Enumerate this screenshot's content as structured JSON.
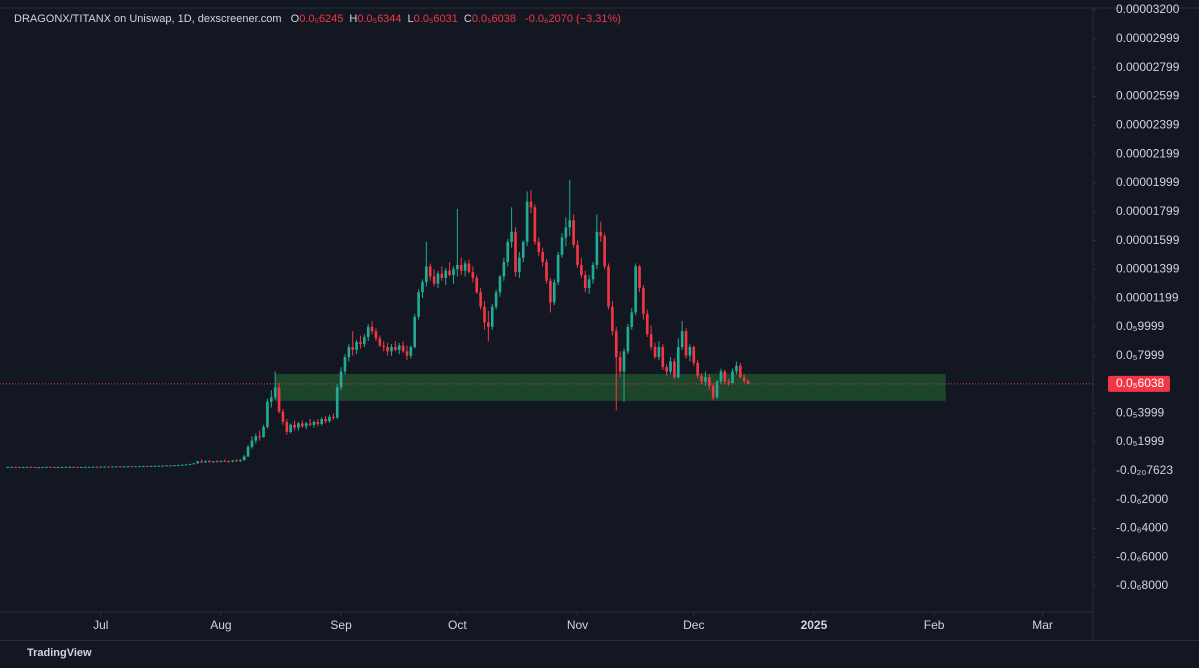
{
  "chart_data": {
    "type": "candlestick",
    "legend_text": {
      "symbol": "DRAGONX/TITANX on Uniswap, 1D, dexscreener.com",
      "ohlc": [
        {
          "key": "O",
          "value": "0.0₅6245"
        },
        {
          "key": "H",
          "value": "0.0₅6344"
        },
        {
          "key": "L",
          "value": "0.0₅6031"
        },
        {
          "key": "C",
          "value": "0.0₅6038"
        }
      ],
      "change": "-0.0₆2070 (−3.31%)"
    },
    "up_color": "#22ab94",
    "down_color": "#f23645",
    "xlim": [
      -2,
      280
    ],
    "ylim": [
      -9.8e-06,
      3.214e-05
    ],
    "yticks": [
      {
        "value": 3.2e-05,
        "label": "0.00003200"
      },
      2.999e-05,
      2.799e-05,
      2.599e-05,
      2.399e-05,
      2.199e-05,
      1.999e-05,
      1.799e-05,
      1.599e-05,
      1.399e-05,
      1.199e-05,
      {
        "value": 9.999e-06,
        "label": "0.0₅9999"
      },
      {
        "value": 7.999e-06,
        "label": "0.0₅7999"
      },
      {
        "value": 3.999e-06,
        "label": "0.0₅3999"
      },
      {
        "value": 1.999e-06,
        "label": "0.0₅1999"
      },
      {
        "value": -7.623e-21,
        "label": "-0.0₂₀7623"
      },
      {
        "value": -2e-06,
        "label": "-0.0₆2000"
      },
      {
        "value": -4e-06,
        "label": "-0.0₆4000"
      },
      {
        "value": -6e-06,
        "label": "-0.0₆6000"
      },
      {
        "value": -8e-06,
        "label": "-0.0₆8000"
      }
    ],
    "xticks": [
      {
        "value": 24,
        "label": "Jul"
      },
      {
        "value": 55,
        "label": "Aug"
      },
      {
        "value": 86,
        "label": "Sep"
      },
      {
        "value": 116,
        "label": "Oct"
      },
      {
        "value": 147,
        "label": "Nov"
      },
      {
        "value": 177,
        "label": "Dec"
      },
      {
        "value": 208,
        "label": "2025"
      },
      {
        "value": 239,
        "label": "Feb"
      },
      {
        "value": 267,
        "label": "Mar"
      }
    ],
    "last_price": {
      "value": 6.038e-06,
      "label": "0.0₅6038",
      "color": "#f23645"
    },
    "zone": {
      "x": [
        69,
        242
      ],
      "y": [
        4.86e-06,
        6.73e-06
      ],
      "color": "#1f4d2e"
    },
    "candles": [
      [
        2.6e-07,
        2.8e-07,
        2.5e-07,
        2.7e-07
      ],
      [
        2.7e-07,
        2.9e-07,
        2.6e-07,
        2.8e-07
      ],
      [
        2.8e-07,
        2.9e-07,
        2.6e-07,
        2.7e-07
      ],
      [
        2.7e-07,
        2.8e-07,
        2.5e-07,
        2.6e-07
      ],
      [
        2.6e-07,
        2.8e-07,
        2.5e-07,
        2.7e-07
      ],
      [
        2.7e-07,
        2.9e-07,
        2.6e-07,
        2.8e-07
      ],
      [
        2.8e-07,
        3e-07,
        2.7e-07,
        2.7e-07
      ],
      [
        2.7e-07,
        2.8e-07,
        2.5e-07,
        2.6e-07
      ],
      [
        2.6e-07,
        2.7e-07,
        2.4e-07,
        2.6e-07
      ],
      [
        2.6e-07,
        2.8e-07,
        2.5e-07,
        2.7e-07
      ],
      [
        2.7e-07,
        2.9e-07,
        2.6e-07,
        2.8e-07
      ],
      [
        2.8e-07,
        2.9e-07,
        2.6e-07,
        2.7e-07
      ],
      [
        2.7e-07,
        2.8e-07,
        2.5e-07,
        2.6e-07
      ],
      [
        2.6e-07,
        2.8e-07,
        2.5e-07,
        2.7e-07
      ],
      [
        2.7e-07,
        2.8e-07,
        2.6e-07,
        2.7e-07
      ],
      [
        2.7e-07,
        2.9e-07,
        2.6e-07,
        2.8e-07
      ],
      [
        2.8e-07,
        3e-07,
        2.7e-07,
        2.8e-07
      ],
      [
        2.8e-07,
        2.9e-07,
        2.6e-07,
        2.7e-07
      ],
      [
        2.7e-07,
        2.8e-07,
        2.5e-07,
        2.6e-07
      ],
      [
        2.6e-07,
        2.8e-07,
        2.5e-07,
        2.7e-07
      ],
      [
        2.7e-07,
        2.9e-07,
        2.6e-07,
        2.8e-07
      ],
      [
        2.8e-07,
        2.9e-07,
        2.7e-07,
        2.8e-07
      ],
      [
        2.8e-07,
        3e-07,
        2.7e-07,
        2.9e-07
      ],
      [
        2.9e-07,
        3e-07,
        2.7e-07,
        2.8e-07
      ],
      [
        2.8e-07,
        3e-07,
        2.7e-07,
        2.9e-07
      ],
      [
        2.9e-07,
        3.1e-07,
        2.8e-07,
        3e-07
      ],
      [
        3e-07,
        3.1e-07,
        2.8e-07,
        2.9e-07
      ],
      [
        2.9e-07,
        3.1e-07,
        2.8e-07,
        3e-07
      ],
      [
        3e-07,
        3.2e-07,
        2.9e-07,
        3.1e-07
      ],
      [
        3.1e-07,
        3.2e-07,
        2.9e-07,
        3e-07
      ],
      [
        3e-07,
        3.2e-07,
        2.9e-07,
        3.1e-07
      ],
      [
        3.1e-07,
        3.3e-07,
        3e-07,
        3.2e-07
      ],
      [
        3.2e-07,
        3.3e-07,
        3e-07,
        3.1e-07
      ],
      [
        3.1e-07,
        3.3e-07,
        3e-07,
        3.2e-07
      ],
      [
        3.2e-07,
        3.4e-07,
        3.1e-07,
        3.3e-07
      ],
      [
        3.3e-07,
        3.5e-07,
        3.2e-07,
        3.4e-07
      ],
      [
        3.4e-07,
        3.5e-07,
        3.2e-07,
        3.3e-07
      ],
      [
        3.3e-07,
        3.5e-07,
        3.2e-07,
        3.4e-07
      ],
      [
        3.4e-07,
        3.6e-07,
        3.3e-07,
        3.5e-07
      ],
      [
        3.5e-07,
        3.7e-07,
        3.4e-07,
        3.6e-07
      ],
      [
        3.6e-07,
        3.8e-07,
        3.5e-07,
        3.7e-07
      ],
      [
        3.7e-07,
        3.9e-07,
        3.5e-07,
        3.8e-07
      ],
      [
        3.8e-07,
        4e-07,
        3.6e-07,
        3.7e-07
      ],
      [
        3.7e-07,
        4e-07,
        3.6e-07,
        3.9e-07
      ],
      [
        3.9e-07,
        4.2e-07,
        3.8e-07,
        4.1e-07
      ],
      [
        4.1e-07,
        4.4e-07,
        3.9e-07,
        4.3e-07
      ],
      [
        4.3e-07,
        4.6e-07,
        4.1e-07,
        4.5e-07
      ],
      [
        4.5e-07,
        5e-07,
        4.3e-07,
        4.8e-07
      ],
      [
        4.8e-07,
        5.5e-07,
        4.6e-07,
        5.2e-07
      ],
      [
        5.2e-07,
        7e-07,
        5e-07,
        6.5e-07
      ],
      [
        6.5e-07,
        8e-07,
        5.5e-07,
        6e-07
      ],
      [
        6e-07,
        7.2e-07,
        5.5e-07,
        6.8e-07
      ],
      [
        6.8e-07,
        7.5e-07,
        5.8e-07,
        6.2e-07
      ],
      [
        6.2e-07,
        7e-07,
        5.6e-07,
        6.6e-07
      ],
      [
        6.6e-07,
        7.4e-07,
        6e-07,
        6.3e-07
      ],
      [
        6.3e-07,
        7.2e-07,
        5.8e-07,
        7e-07
      ],
      [
        7e-07,
        7.8e-07,
        6.2e-07,
        6.6e-07
      ],
      [
        6.6e-07,
        7.4e-07,
        6e-07,
        6.4e-07
      ],
      [
        6.4e-07,
        7.5e-07,
        6e-07,
        7.2e-07
      ],
      [
        7.2e-07,
        8.2e-07,
        6.5e-07,
        6.8e-07
      ],
      [
        6.8e-07,
        8e-07,
        6.2e-07,
        7.5e-07
      ],
      [
        7.5e-07,
        1.1e-06,
        7e-07,
        1e-06
      ],
      [
        1e-06,
        1.8e-06,
        9.5e-07,
        1.66e-06
      ],
      [
        1.66e-06,
        2.4e-06,
        1.55e-06,
        2.1e-06
      ],
      [
        2.1e-06,
        2.6e-06,
        1.9e-06,
        2.4e-06
      ],
      [
        2.4e-06,
        2.8e-06,
        2.1e-06,
        2.36e-06
      ],
      [
        2.36e-06,
        3.2e-06,
        2.3e-06,
        3.05e-06
      ],
      [
        3.05e-06,
        5e-06,
        2.95e-06,
        4.8e-06
      ],
      [
        4.8e-06,
        5.6e-06,
        4.4e-06,
        5.1e-06
      ],
      [
        5.1e-06,
        6.9e-06,
        4.9e-06,
        5.8e-06
      ],
      [
        5.8e-06,
        6.1e-06,
        4e-06,
        4.1e-06
      ],
      [
        4.1e-06,
        4.3e-06,
        3.2e-06,
        3.4e-06
      ],
      [
        3.4e-06,
        3.6e-06,
        2.5e-06,
        2.7e-06
      ],
      [
        2.7e-06,
        3.3e-06,
        2.6e-06,
        3.2e-06
      ],
      [
        3.2e-06,
        3.5e-06,
        2.8e-06,
        3e-06
      ],
      [
        3e-06,
        3.4e-06,
        2.8e-06,
        3.3e-06
      ],
      [
        3.3e-06,
        3.5e-06,
        3e-06,
        3.1e-06
      ],
      [
        3.1e-06,
        3.4e-06,
        2.9e-06,
        3.3e-06
      ],
      [
        3.3e-06,
        3.6e-06,
        3.1e-06,
        3.2e-06
      ],
      [
        3.2e-06,
        3.5e-06,
        3e-06,
        3.4e-06
      ],
      [
        3.4e-06,
        3.6e-06,
        3.1e-06,
        3.25e-06
      ],
      [
        3.25e-06,
        3.7e-06,
        3.15e-06,
        3.6e-06
      ],
      [
        3.6e-06,
        3.8e-06,
        3.3e-06,
        3.45e-06
      ],
      [
        3.45e-06,
        3.9e-06,
        3.35e-06,
        3.75e-06
      ],
      [
        3.75e-06,
        4e-06,
        3.55e-06,
        3.7e-06
      ],
      [
        3.7e-06,
        6e-06,
        3.6e-06,
        5.8e-06
      ],
      [
        5.8e-06,
        7.2e-06,
        5.6e-06,
        6.9e-06
      ],
      [
        6.9e-06,
        8.1e-06,
        6.7e-06,
        7.9e-06
      ],
      [
        7.9e-06,
        8.8e-06,
        7.6e-06,
        8.6e-06
      ],
      [
        8.6e-06,
        9.7e-06,
        8e-06,
        8.4e-06
      ],
      [
        8.4e-06,
        9.1e-06,
        8.1e-06,
        8.95e-06
      ],
      [
        8.95e-06,
        9.4e-06,
        8.5e-06,
        8.8e-06
      ],
      [
        8.8e-06,
        9.5e-06,
        8.6e-06,
        9.3e-06
      ],
      [
        9.3e-06,
        1.02e-05,
        9e-06,
        1e-05
      ],
      [
        1e-05,
        1.04e-05,
        9.5e-06,
        9.7e-06
      ],
      [
        9.7e-06,
        9.9e-06,
        9e-06,
        9.2e-06
      ],
      [
        9.2e-06,
        9.4e-06,
        8.6e-06,
        8.7e-06
      ],
      [
        8.7e-06,
        9e-06,
        8.3e-06,
        8.6e-06
      ],
      [
        8.6e-06,
        8.9e-06,
        8e-06,
        8.3e-06
      ],
      [
        8.3e-06,
        8.8e-06,
        8e-06,
        8.6e-06
      ],
      [
        8.6e-06,
        9e-06,
        8.3e-06,
        8.4e-06
      ],
      [
        8.4e-06,
        8.9e-06,
        8.1e-06,
        8.7e-06
      ],
      [
        8.7e-06,
        9e-06,
        8.2e-06,
        8.3e-06
      ],
      [
        8.3e-06,
        8.7e-06,
        7.7e-06,
        8e-06
      ],
      [
        8e-06,
        8.7e-06,
        7.8e-06,
        8.6e-06
      ],
      [
        8.6e-06,
        1.09e-05,
        8.5e-06,
        1.07e-05
      ],
      [
        1.07e-05,
        1.26e-05,
        1.05e-05,
        1.24e-05
      ],
      [
        1.24e-05,
        1.33e-05,
        1.2e-05,
        1.31e-05
      ],
      [
        1.31e-05,
        1.59e-05,
        1.28e-05,
        1.42e-05
      ],
      [
        1.42e-05,
        1.44e-05,
        1.32e-05,
        1.35e-05
      ],
      [
        1.35e-05,
        1.4e-05,
        1.28e-05,
        1.3e-05
      ],
      [
        1.3e-05,
        1.39e-05,
        1.27e-05,
        1.37e-05
      ],
      [
        1.37e-05,
        1.42e-05,
        1.32e-05,
        1.34e-05
      ],
      [
        1.34e-05,
        1.41e-05,
        1.29e-05,
        1.39e-05
      ],
      [
        1.39e-05,
        1.45e-05,
        1.35e-05,
        1.36e-05
      ],
      [
        1.36e-05,
        1.42e-05,
        1.3e-05,
        1.4e-05
      ],
      [
        1.4e-05,
        1.82e-05,
        1.35e-05,
        1.43e-05
      ],
      [
        1.43e-05,
        1.48e-05,
        1.36e-05,
        1.39e-05
      ],
      [
        1.39e-05,
        1.46e-05,
        1.35e-05,
        1.44e-05
      ],
      [
        1.44e-05,
        1.47e-05,
        1.37e-05,
        1.38e-05
      ],
      [
        1.38e-05,
        1.42e-05,
        1.31e-05,
        1.34e-05
      ],
      [
        1.34e-05,
        1.36e-05,
        1.23e-05,
        1.24e-05
      ],
      [
        1.24e-05,
        1.27e-05,
        1.12e-05,
        1.14e-05
      ],
      [
        1.14e-05,
        1.18e-05,
        9.8e-06,
        1.03e-05
      ],
      [
        1.03e-05,
        1.11e-05,
        9e-06,
        1e-05
      ],
      [
        1e-05,
        1.16e-05,
        9.8e-06,
        1.14e-05
      ],
      [
        1.14e-05,
        1.26e-05,
        1.12e-05,
        1.24e-05
      ],
      [
        1.24e-05,
        1.36e-05,
        1.21e-05,
        1.35e-05
      ],
      [
        1.35e-05,
        1.48e-05,
        1.32e-05,
        1.45e-05
      ],
      [
        1.45e-05,
        1.61e-05,
        1.42e-05,
        1.59e-05
      ],
      [
        1.59e-05,
        1.83e-05,
        1.55e-05,
        1.66e-05
      ],
      [
        1.66e-05,
        1.69e-05,
        1.35e-05,
        1.38e-05
      ],
      [
        1.38e-05,
        1.52e-05,
        1.34e-05,
        1.48e-05
      ],
      [
        1.48e-05,
        1.6e-05,
        1.45e-05,
        1.59e-05
      ],
      [
        1.59e-05,
        1.94e-05,
        1.56e-05,
        1.87e-05
      ],
      [
        1.87e-05,
        1.95e-05,
        1.79e-05,
        1.83e-05
      ],
      [
        1.83e-05,
        1.85e-05,
        1.57e-05,
        1.59e-05
      ],
      [
        1.59e-05,
        1.62e-05,
        1.49e-05,
        1.52e-05
      ],
      [
        1.52e-05,
        1.55e-05,
        1.42e-05,
        1.45e-05
      ],
      [
        1.45e-05,
        1.47e-05,
        1.3e-05,
        1.32e-05
      ],
      [
        1.32e-05,
        1.34e-05,
        1.1e-05,
        1.17e-05
      ],
      [
        1.17e-05,
        1.33e-05,
        1.15e-05,
        1.31e-05
      ],
      [
        1.31e-05,
        1.52e-05,
        1.29e-05,
        1.5e-05
      ],
      [
        1.5e-05,
        1.65e-05,
        1.48e-05,
        1.62e-05
      ],
      [
        1.62e-05,
        1.76e-05,
        1.56e-05,
        1.69e-05
      ],
      [
        1.69e-05,
        2.02e-05,
        1.63e-05,
        1.74e-05
      ],
      [
        1.74e-05,
        1.78e-05,
        1.55e-05,
        1.57e-05
      ],
      [
        1.57e-05,
        1.6e-05,
        1.41e-05,
        1.43e-05
      ],
      [
        1.43e-05,
        1.48e-05,
        1.34e-05,
        1.36e-05
      ],
      [
        1.36e-05,
        1.39e-05,
        1.24e-05,
        1.27e-05
      ],
      [
        1.27e-05,
        1.36e-05,
        1.23e-05,
        1.33e-05
      ],
      [
        1.33e-05,
        1.45e-05,
        1.3e-05,
        1.43e-05
      ],
      [
        1.43e-05,
        1.78e-05,
        1.4e-05,
        1.66e-05
      ],
      [
        1.66e-05,
        1.73e-05,
        1.59e-05,
        1.63e-05
      ],
      [
        1.63e-05,
        1.65e-05,
        1.4e-05,
        1.42e-05
      ],
      [
        1.42e-05,
        1.44e-05,
        1.12e-05,
        1.14e-05
      ],
      [
        1.14e-05,
        1.18e-05,
        9.4e-06,
        9.7e-06
      ],
      [
        9.7e-06,
        1e-05,
        4.2e-06,
        7.9e-06
      ],
      [
        7.9e-06,
        8.3e-06,
        6.5e-06,
        6.9e-06
      ],
      [
        6.9e-06,
        8.5e-06,
        4.8e-06,
        8.3e-06
      ],
      [
        8.3e-06,
        1.02e-05,
        8.1e-06,
        1e-05
      ],
      [
        1e-05,
        1.13e-05,
        9.8e-06,
        1.1e-05
      ],
      [
        1.1e-05,
        1.44e-05,
        1.08e-05,
        1.42e-05
      ],
      [
        1.42e-05,
        1.43e-05,
        1.24e-05,
        1.27e-05
      ],
      [
        1.27e-05,
        1.29e-05,
        1.05e-05,
        1.09e-05
      ],
      [
        1.09e-05,
        1.12e-05,
        9.3e-06,
        9.5e-06
      ],
      [
        9.5e-06,
        1.01e-05,
        8.4e-06,
        8.6e-06
      ],
      [
        8.6e-06,
        8.9e-06,
        7.8e-06,
        7.9e-06
      ],
      [
        7.9e-06,
        9e-06,
        7.7e-06,
        8.6e-06
      ],
      [
        8.6e-06,
        8.8e-06,
        7e-06,
        7.2e-06
      ],
      [
        7.2e-06,
        7.4e-06,
        6.6e-06,
        6.9e-06
      ],
      [
        6.9e-06,
        7.9e-06,
        6.7e-06,
        7.6e-06
      ],
      [
        7.6e-06,
        7.8e-06,
        6.4e-06,
        6.5e-06
      ],
      [
        6.5e-06,
        9.2e-06,
        6.4e-06,
        8.6e-06
      ],
      [
        8.6e-06,
        1.04e-05,
        8.4e-06,
        9.7e-06
      ],
      [
        9.7e-06,
        9.9e-06,
        7.8e-06,
        8e-06
      ],
      [
        8e-06,
        8.8e-06,
        7.6e-06,
        8.6e-06
      ],
      [
        8.6e-06,
        8.7e-06,
        7.3e-06,
        7.5e-06
      ],
      [
        7.5e-06,
        7.7e-06,
        6.4e-06,
        6.6e-06
      ],
      [
        6.6e-06,
        6.8e-06,
        6e-06,
        6.2e-06
      ],
      [
        6.2e-06,
        6.9e-06,
        5.9e-06,
        6.5e-06
      ],
      [
        6.5e-06,
        6.7e-06,
        5.6e-06,
        5.9e-06
      ],
      [
        5.9e-06,
        6.1e-06,
        4.9e-06,
        5.1e-06
      ],
      [
        5.1e-06,
        6.3e-06,
        5e-06,
        6.2e-06
      ],
      [
        6.2e-06,
        7.1e-06,
        6e-06,
        6.9e-06
      ],
      [
        6.9e-06,
        7e-06,
        6e-06,
        6.2e-06
      ],
      [
        6.2e-06,
        6.4e-06,
        5.9e-06,
        6.1e-06
      ],
      [
        6.1e-06,
        7.1e-06,
        6e-06,
        6.9e-06
      ],
      [
        6.9e-06,
        7.6e-06,
        6.7e-06,
        7.3e-06
      ],
      [
        7.3e-06,
        7.5e-06,
        6.4e-06,
        6.5e-06
      ],
      [
        6.5e-06,
        6.7e-06,
        6.1e-06,
        6.245e-06
      ],
      [
        6.245e-06,
        6.344e-06,
        6.031e-06,
        6.038e-06
      ]
    ]
  },
  "footer": {
    "brand": "TradingView"
  }
}
